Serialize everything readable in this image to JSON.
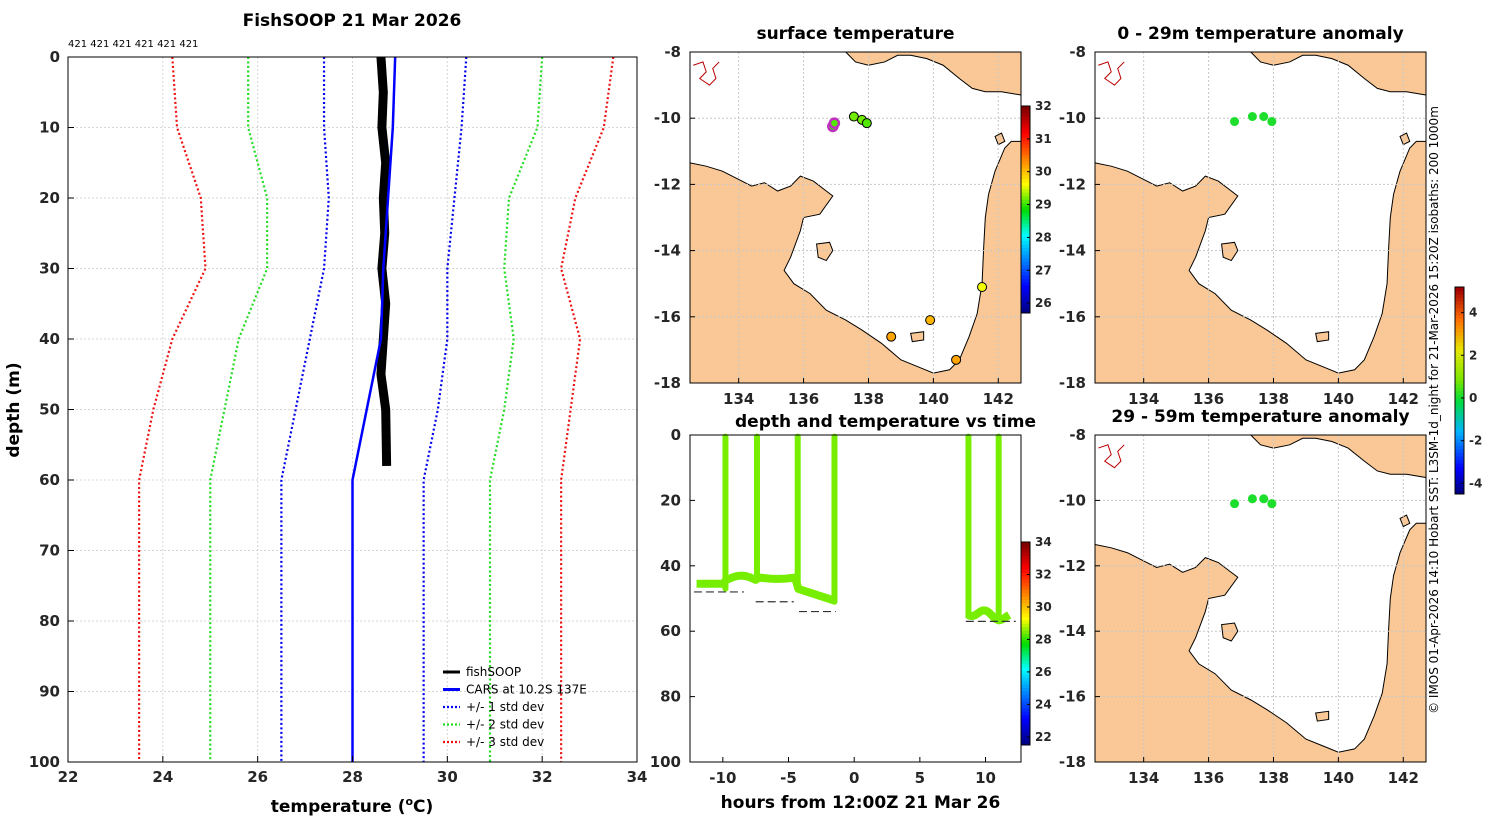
{
  "figure_title": "FishSOOP 21 Mar 2026",
  "side_note": "© IMOS 01-Apr-2026 14:10 Hobart SST: L3SM-1d_night for 21-Mar-2026 15:20Z isobaths: 200  1000m",
  "colors": {
    "fishsoop": "#000000",
    "cars": "#0000ff",
    "std1": "#0000ee",
    "std2": "#22dd22",
    "std3": "#ee1111",
    "land": "#f9c896",
    "coast": "#000000",
    "depth_points": "#77ee00"
  },
  "chart_data": [
    {
      "id": "profile",
      "type": "line",
      "title": "FishSOOP 21 Mar 2026",
      "xlabel": "temperature (°C)",
      "xlabel_main": "temperature (",
      "xlabel_sup": "o",
      "xlabel_end": "C)",
      "ylabel": "depth (m)",
      "xlim": [
        22,
        34
      ],
      "ylim": [
        0,
        100
      ],
      "y_reversed": true,
      "grid": true,
      "xticks": [
        22,
        24,
        26,
        28,
        30,
        32,
        34
      ],
      "yticks": [
        0,
        10,
        20,
        30,
        40,
        50,
        60,
        70,
        80,
        90,
        100
      ],
      "top_annotation": "421 421 421 421 421 421",
      "legend_position": "bottom-right",
      "series": [
        {
          "name": "fishSOOP",
          "style": "thick",
          "color_key": "fishsoop",
          "x": [
            28.6,
            28.65,
            28.62,
            28.7,
            28.65,
            28.68,
            28.62,
            28.7,
            28.65,
            28.6,
            28.7,
            28.72
          ],
          "y": [
            0,
            5,
            10,
            15,
            20,
            25,
            30,
            35,
            40,
            45,
            50,
            58
          ]
        },
        {
          "name": "CARS at 10.2S 137E",
          "style": "solid",
          "color_key": "cars",
          "x": [
            28.9,
            28.85,
            28.75,
            28.65,
            28.6,
            28.3,
            28.0,
            28.0
          ],
          "y": [
            0,
            10,
            20,
            30,
            40,
            50,
            60,
            100
          ]
        },
        {
          "name": "+/- 1 std dev",
          "style": "dotted",
          "color_key": "std1",
          "paired": true,
          "lower": {
            "x": [
              27.4,
              27.4,
              27.5,
              27.4,
              27.1,
              26.8,
              26.5,
              26.5
            ],
            "y": [
              0,
              10,
              20,
              30,
              40,
              50,
              60,
              100
            ]
          },
          "upper": {
            "x": [
              30.4,
              30.3,
              30.15,
              30.0,
              30.0,
              29.8,
              29.5,
              29.5
            ],
            "y": [
              0,
              10,
              20,
              30,
              40,
              50,
              60,
              100
            ]
          }
        },
        {
          "name": "+/- 2 std dev",
          "style": "dotted",
          "color_key": "std2",
          "paired": true,
          "lower": {
            "x": [
              25.8,
              25.8,
              26.2,
              26.2,
              25.6,
              25.3,
              25.0,
              25.0
            ],
            "y": [
              0,
              10,
              20,
              30,
              40,
              50,
              60,
              100
            ]
          },
          "upper": {
            "x": [
              32.0,
              31.9,
              31.3,
              31.2,
              31.4,
              31.2,
              30.9,
              30.9
            ],
            "y": [
              0,
              10,
              20,
              30,
              40,
              50,
              60,
              100
            ]
          }
        },
        {
          "name": "+/- 3 std dev",
          "style": "dotted",
          "color_key": "std3",
          "paired": true,
          "lower": {
            "x": [
              24.2,
              24.3,
              24.8,
              24.9,
              24.2,
              23.8,
              23.5,
              23.5
            ],
            "y": [
              0,
              10,
              20,
              30,
              40,
              50,
              60,
              100
            ]
          },
          "upper": {
            "x": [
              33.5,
              33.3,
              32.7,
              32.4,
              32.8,
              32.6,
              32.4,
              32.4
            ],
            "y": [
              0,
              10,
              20,
              30,
              40,
              50,
              60,
              100
            ]
          }
        }
      ]
    },
    {
      "id": "surface_map",
      "type": "scatter",
      "title": "surface temperature",
      "xlim": [
        132.5,
        142.7
      ],
      "ylim": [
        -18,
        -8
      ],
      "xticks": [
        134,
        136,
        138,
        140,
        142
      ],
      "yticks": [
        -8,
        -10,
        -12,
        -14,
        -16,
        -18
      ],
      "colorbar": {
        "ticks": [
          26,
          27,
          28,
          29,
          30,
          31,
          32
        ],
        "range": [
          25.7,
          32
        ]
      },
      "points": [
        {
          "lon": 136.9,
          "lat": -10.25,
          "value": 29.0,
          "highlight": "#c030c0"
        },
        {
          "lon": 136.95,
          "lat": -10.15,
          "value": 29.1,
          "highlight": "#c030c0"
        },
        {
          "lon": 137.55,
          "lat": -9.95,
          "value": 29.2
        },
        {
          "lon": 137.8,
          "lat": -10.05,
          "value": 29.2
        },
        {
          "lon": 137.95,
          "lat": -10.15,
          "value": 29.1
        },
        {
          "lon": 141.5,
          "lat": -15.1,
          "value": 29.6
        },
        {
          "lon": 139.9,
          "lat": -16.1,
          "value": 30.1
        },
        {
          "lon": 138.7,
          "lat": -16.6,
          "value": 30.2
        },
        {
          "lon": 140.7,
          "lat": -17.3,
          "value": 30.2
        }
      ]
    },
    {
      "id": "anomaly_0_29",
      "type": "scatter",
      "title": "0 - 29m temperature anomaly",
      "xlim": [
        132.5,
        142.7
      ],
      "ylim": [
        -18,
        -8
      ],
      "xticks": [
        134,
        136,
        138,
        140,
        142
      ],
      "yticks": [
        -8,
        -10,
        -12,
        -14,
        -16,
        -18
      ],
      "points": [
        {
          "lon": 136.8,
          "lat": -10.1,
          "value": 0.1
        },
        {
          "lon": 137.35,
          "lat": -9.95,
          "value": 0.1
        },
        {
          "lon": 137.7,
          "lat": -9.95,
          "value": 0.1
        },
        {
          "lon": 137.95,
          "lat": -10.1,
          "value": 0.1
        }
      ]
    },
    {
      "id": "depth_time",
      "type": "scatter",
      "title": "depth and temperature vs time",
      "xlabel": "hours from 12:00Z 21 Mar 26",
      "xlim": [
        -12.5,
        12.7
      ],
      "ylim": [
        0,
        100
      ],
      "y_reversed": true,
      "xticks": [
        -10,
        -5,
        0,
        5,
        10
      ],
      "yticks": [
        0,
        20,
        40,
        60,
        80,
        100
      ],
      "colorbar": {
        "ticks": [
          22,
          24,
          26,
          28,
          30,
          32,
          34
        ],
        "range": [
          21.5,
          34
        ]
      },
      "casts": [
        {
          "t_start": -12.0,
          "t_end": -1.3,
          "value": 28.8
        }
      ],
      "profiles": [
        {
          "t": -9.8,
          "bottom": 47
        },
        {
          "t": -7.4,
          "bottom": 44
        },
        {
          "t": -4.3,
          "bottom": 47
        },
        {
          "t": -1.5,
          "bottom": 51
        },
        {
          "t": 8.7,
          "bottom": 55
        },
        {
          "t": 11.0,
          "bottom": 57
        }
      ],
      "bottom_line": [
        {
          "t0": -12.2,
          "t1": -8.4,
          "d": 48
        },
        {
          "t0": -7.5,
          "t1": -4.6,
          "d": 51
        },
        {
          "t0": -4.2,
          "t1": -1.4,
          "d": 54
        },
        {
          "t0": 8.5,
          "t1": 12.3,
          "d": 57
        }
      ]
    },
    {
      "id": "anomaly_29_59",
      "type": "scatter",
      "title": "29 - 59m temperature anomaly",
      "xlim": [
        132.5,
        142.7
      ],
      "ylim": [
        -18,
        -8
      ],
      "xticks": [
        134,
        136,
        138,
        140,
        142
      ],
      "yticks": [
        -8,
        -10,
        -12,
        -14,
        -16,
        -18
      ],
      "colorbar": {
        "ticks": [
          -4,
          -2,
          0,
          2,
          4
        ],
        "range": [
          -4.5,
          5.2
        ]
      },
      "points": [
        {
          "lon": 136.8,
          "lat": -10.1,
          "value": 0.1
        },
        {
          "lon": 137.35,
          "lat": -9.95,
          "value": 0.1
        },
        {
          "lon": 137.7,
          "lat": -9.95,
          "value": 0.1
        },
        {
          "lon": 137.95,
          "lat": -10.1,
          "value": 0.1
        }
      ]
    }
  ]
}
